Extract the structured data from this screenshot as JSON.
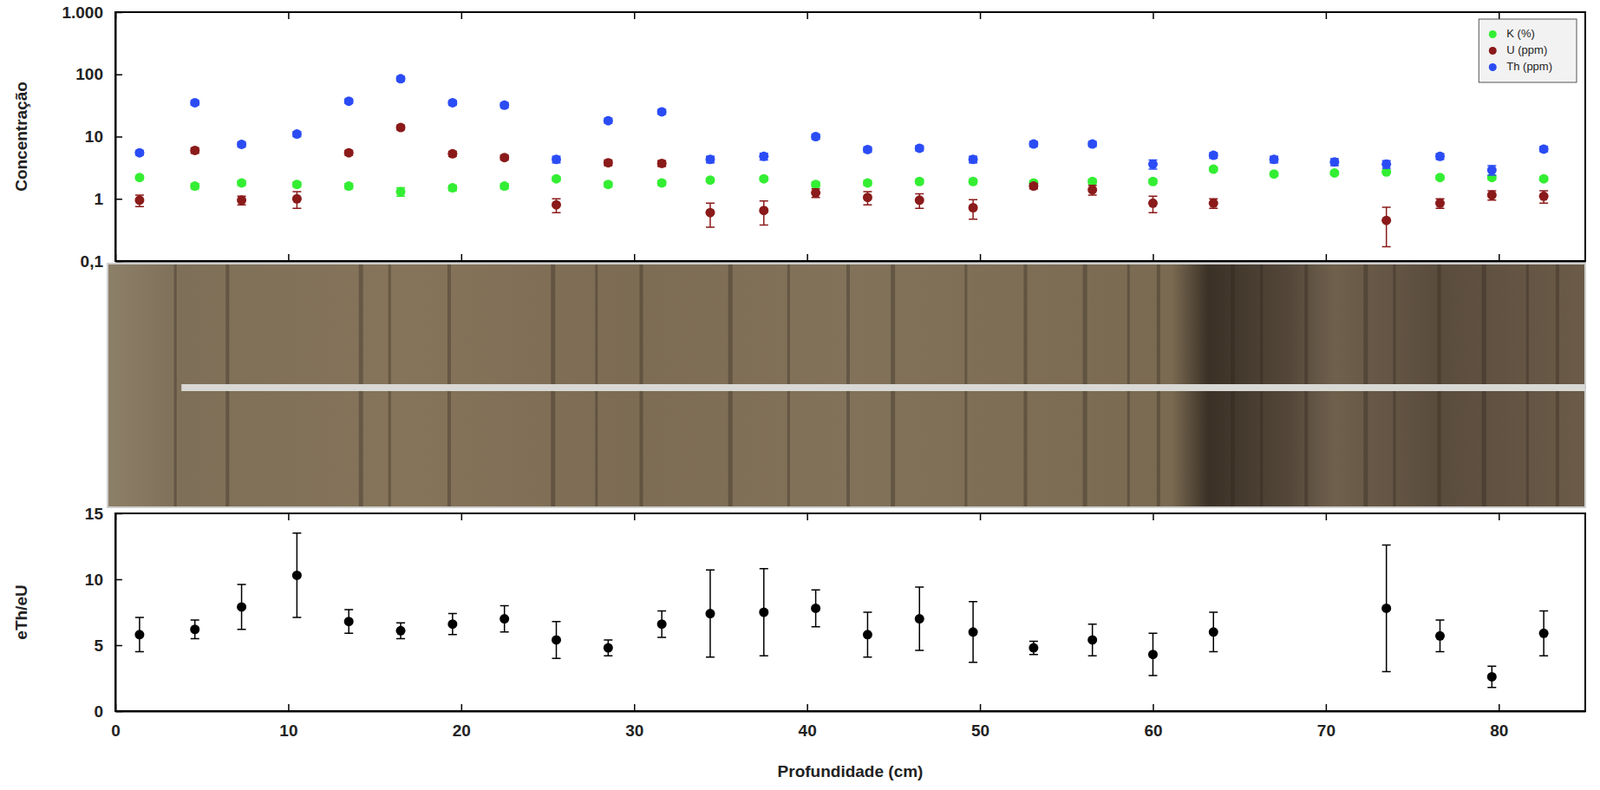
{
  "chart_data": [
    {
      "type": "scatter",
      "ylabel": "Concentração",
      "log": "y",
      "legend": "upper right",
      "tick_labels": "y",
      "xlim": [
        0,
        85
      ],
      "xticks": [
        0,
        10,
        20,
        30,
        40,
        50,
        60,
        70,
        80
      ],
      "ylim": [
        0.1,
        1000
      ],
      "yticks": [
        {
          "value": 0.1,
          "label": "0,1"
        },
        1,
        10,
        100,
        {
          "value": 1000,
          "label": "1.000"
        }
      ],
      "x": [
        1.4,
        4.6,
        7.3,
        10.5,
        13.5,
        16.5,
        19.5,
        22.5,
        25.5,
        28.5,
        31.6,
        34.4,
        37.5,
        40.5,
        43.5,
        46.5,
        49.6,
        53.1,
        56.5,
        60.0,
        63.5,
        67.0,
        70.5,
        73.5,
        76.6,
        79.6,
        82.6
      ],
      "series": [
        {
          "name": "K (%)",
          "color": "#33ee33",
          "marker": "circle",
          "values": [
            2.2,
            1.6,
            1.8,
            1.7,
            1.6,
            1.3,
            1.5,
            1.6,
            2.1,
            1.7,
            1.8,
            2.0,
            2.1,
            1.7,
            1.8,
            1.9,
            1.9,
            1.8,
            1.9,
            1.9,
            3.0,
            2.5,
            2.6,
            2.7,
            2.2,
            2.2,
            2.1
          ],
          "errors": [
            0.15,
            0.15,
            0.15,
            0.15,
            0.15,
            0.2,
            0.15,
            0.15,
            0.15,
            0.15,
            0.15,
            0.15,
            0.15,
            0.15,
            0.15,
            0.15,
            0.15,
            0.15,
            0.15,
            0.15,
            0.2,
            0.15,
            0.15,
            0.15,
            0.15,
            0.15,
            0.15
          ]
        },
        {
          "name": "U (ppm)",
          "color": "#8b1a1a",
          "marker": "circle",
          "values": [
            0.95,
            6.0,
            0.95,
            1.0,
            5.5,
            14,
            5.3,
            4.6,
            0.8,
            3.8,
            3.7,
            0.6,
            0.65,
            1.25,
            1.05,
            0.95,
            0.72,
            1.6,
            1.4,
            0.85,
            0.85,
            null,
            null,
            0.45,
            0.85,
            1.15,
            1.1
          ],
          "errors": [
            0.2,
            0.6,
            0.15,
            0.3,
            0.5,
            1.2,
            0.5,
            0.4,
            0.2,
            0.4,
            0.4,
            0.25,
            0.27,
            0.2,
            0.25,
            0.25,
            0.25,
            0.15,
            0.25,
            0.25,
            0.15,
            null,
            null,
            0.28,
            0.15,
            0.2,
            0.25
          ]
        },
        {
          "name": "Th (ppm)",
          "color": "#2b4cf5",
          "marker": "circle",
          "values": [
            5.5,
            35,
            7.5,
            11,
            37,
            85,
            35,
            32,
            4.3,
            18,
            25,
            4.3,
            4.8,
            10,
            6.2,
            6.5,
            4.3,
            7.6,
            7.6,
            3.6,
            5.0,
            4.3,
            3.9,
            3.6,
            4.8,
            2.9,
            6.3
          ],
          "errors": [
            0.5,
            3,
            0.7,
            1,
            3,
            7,
            3,
            3,
            0.5,
            1.6,
            2.2,
            0.5,
            0.6,
            0.9,
            0.6,
            0.6,
            0.5,
            0.7,
            0.7,
            0.6,
            0.5,
            0.5,
            0.5,
            0.5,
            0.5,
            0.5,
            0.6
          ]
        }
      ]
    },
    {
      "type": "scatter",
      "xlabel": "Profundidade (cm)",
      "ylabel": "eTh/eU",
      "xlim": [
        0,
        85
      ],
      "xticks": [
        0,
        10,
        20,
        30,
        40,
        50,
        60,
        70,
        80
      ],
      "ylim": [
        0,
        15
      ],
      "yticks": [
        0,
        5,
        10,
        15
      ],
      "x": [
        1.4,
        4.6,
        7.3,
        10.5,
        13.5,
        16.5,
        19.5,
        22.5,
        25.5,
        28.5,
        31.6,
        34.4,
        37.5,
        40.5,
        43.5,
        46.5,
        49.6,
        53.1,
        56.5,
        60.0,
        63.5,
        67.0,
        70.5,
        73.5,
        76.6,
        79.6,
        82.6
      ],
      "series": [
        {
          "color": "#000000",
          "marker": "circle",
          "values": [
            5.8,
            6.2,
            7.9,
            10.3,
            6.8,
            6.1,
            6.6,
            7.0,
            5.4,
            4.8,
            6.6,
            7.4,
            7.5,
            7.8,
            5.8,
            7.0,
            6.0,
            4.8,
            5.4,
            4.3,
            6.0,
            null,
            null,
            7.8,
            5.7,
            2.6,
            5.9
          ],
          "errors": [
            1.3,
            0.7,
            1.7,
            3.2,
            0.9,
            0.6,
            0.8,
            1.0,
            1.4,
            0.6,
            1.0,
            3.3,
            3.3,
            1.4,
            1.7,
            2.4,
            2.3,
            0.5,
            1.2,
            1.6,
            1.5,
            null,
            null,
            4.8,
            1.2,
            0.8,
            1.7
          ]
        }
      ]
    }
  ]
}
